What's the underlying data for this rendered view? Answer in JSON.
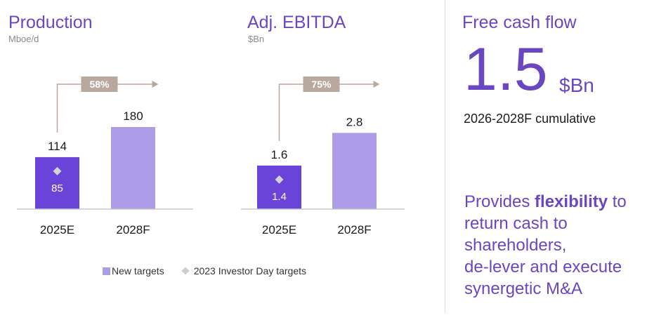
{
  "colors": {
    "accent": "#6b46c1",
    "bar_actual": "#6a44d8",
    "bar_target": "#ad9de8",
    "arrow": "#b9a89e",
    "diamond": "#d3d3d3"
  },
  "chart_data": [
    {
      "type": "bar",
      "title": "Production",
      "unit": "Mboe/d",
      "categories": [
        "2025E",
        "2028F"
      ],
      "values": [
        114,
        180
      ],
      "value_labels": [
        "114",
        "180"
      ],
      "ylim": [
        0,
        200
      ],
      "investor_day_target": {
        "category": "2025E",
        "value": 85,
        "label": "85"
      },
      "growth": {
        "from": "2025E",
        "to": "2028F",
        "label": "58%"
      }
    },
    {
      "type": "bar",
      "title": "Adj. EBITDA",
      "unit": "$Bn",
      "categories": [
        "2025E",
        "2028F"
      ],
      "values": [
        1.6,
        2.8
      ],
      "value_labels": [
        "1.6",
        "2.8"
      ],
      "ylim": [
        0,
        3.2
      ],
      "investor_day_target": {
        "category": "2025E",
        "value": 1.4,
        "label": "1.4"
      },
      "growth": {
        "from": "2025E",
        "to": "2028F",
        "label": "75%"
      }
    }
  ],
  "legend": {
    "new_targets": "New targets",
    "investor_day_targets": "2023 Investor Day targets"
  },
  "fcf": {
    "title": "Free cash flow",
    "value": "1.5",
    "unit": "$Bn",
    "subtitle": "2026-2028F cumulative",
    "text_parts": {
      "pre": "Provides ",
      "bold": "flexibility",
      "post_first_line": " to",
      "line2": "return cash to",
      "line3": "shareholders,",
      "line4": "de-lever and execute",
      "line5": "synergetic M&A"
    }
  }
}
